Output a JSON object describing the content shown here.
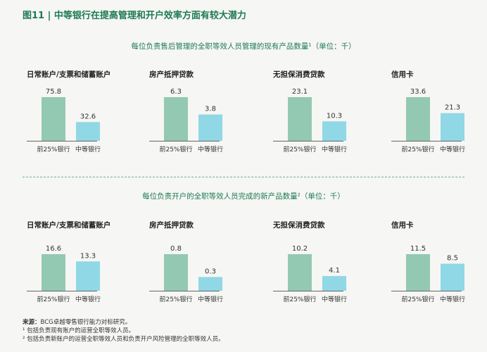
{
  "figure_title": "图11 | 中等银行在提高管理和开户效率方面有较大潜力",
  "colors": {
    "top25": "#93c9b2",
    "mid": "#90d8e6",
    "title": "#1d7a54",
    "axis": "#666666"
  },
  "chart_data": [
    {
      "type": "bar",
      "section_title": "每位负责售后管理的全职等效人员管理的现有产品数量¹（单位：千）",
      "categories": [
        "前25%银行",
        "中等银行"
      ],
      "panels": [
        {
          "title": "日常账户/支票和储蓄账户",
          "values": [
            75.8,
            32.6
          ],
          "labels": [
            "75.8",
            "32.6"
          ]
        },
        {
          "title": "房产抵押贷款",
          "values": [
            6.3,
            3.8
          ],
          "labels": [
            "6.3",
            "3.8"
          ]
        },
        {
          "title": "无担保消费贷款",
          "values": [
            23.1,
            10.3
          ],
          "labels": [
            "23.1",
            "10.3"
          ]
        },
        {
          "title": "信用卡",
          "values": [
            33.6,
            21.3
          ],
          "labels": [
            "33.6",
            "21.3"
          ]
        }
      ]
    },
    {
      "type": "bar",
      "section_title": "每位负责开户的全职等效人员完成的新产品数量²（单位：千）",
      "categories": [
        "前25%银行",
        "中等银行"
      ],
      "panels": [
        {
          "title": "日常账户/支票和储蓄账户",
          "values": [
            16.6,
            13.3
          ],
          "labels": [
            "16.6",
            "13.3"
          ]
        },
        {
          "title": "房产抵押贷款",
          "values": [
            0.8,
            0.3
          ],
          "labels": [
            "0.8",
            "0.3"
          ]
        },
        {
          "title": "无担保消费贷款",
          "values": [
            10.2,
            4.1
          ],
          "labels": [
            "10.2",
            "4.1"
          ]
        },
        {
          "title": "信用卡",
          "values": [
            11.5,
            8.5
          ],
          "labels": [
            "11.5",
            "8.5"
          ]
        }
      ]
    }
  ],
  "notes": {
    "source_label": "来源：",
    "source_text": "BCG卓越零售银行能力对标研究。",
    "note1": "¹ 包括负责现有账户的运营全职等效人员。",
    "note2": "² 包括负责新账户的运营全职等效人员和负责开户风险管理的全职等效人员。"
  }
}
